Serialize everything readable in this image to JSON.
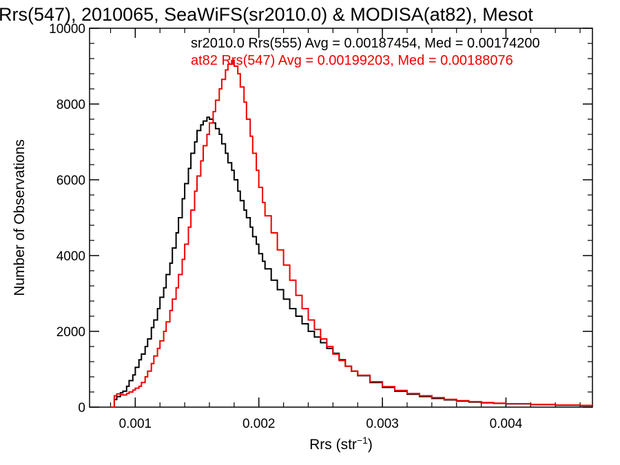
{
  "chart_data": {
    "type": "line",
    "style": "histogram-step",
    "title": "Rrs(547), 2010065, SeaWiFS(sr2010.0) & MODISA(at82), Mesot",
    "xlabel": "Rrs (str",
    "xlabel_superscript": "−1",
    "xlabel_suffix": ")",
    "ylabel": "Number of Observations",
    "xlim": [
      0.00063,
      0.0047
    ],
    "ylim": [
      0,
      10000
    ],
    "x_ticks": [
      0.001,
      0.002,
      0.003,
      0.004
    ],
    "x_tick_labels": [
      "0.001",
      "0.002",
      "0.003",
      "0.004"
    ],
    "y_ticks": [
      0,
      2000,
      4000,
      6000,
      8000,
      10000
    ],
    "y_tick_labels": [
      "0",
      "2000",
      "4000",
      "6000",
      "8000",
      "10000"
    ],
    "grid": false,
    "legend_position": "top",
    "series": [
      {
        "name": "sr2010.0 Rrs(555) Avg = 0.00187454, Med = 0.00174200",
        "color": "#000000",
        "points": [
          [
            0.0008,
            0
          ],
          [
            0.00083,
            200
          ],
          [
            0.00085,
            280
          ],
          [
            0.00088,
            380
          ],
          [
            0.0009,
            420
          ],
          [
            0.00093,
            550
          ],
          [
            0.00095,
            700
          ],
          [
            0.00098,
            850
          ],
          [
            0.001,
            1050
          ],
          [
            0.00103,
            1250
          ],
          [
            0.00105,
            1400
          ],
          [
            0.00108,
            1600
          ],
          [
            0.0011,
            1800
          ],
          [
            0.00113,
            2100
          ],
          [
            0.00115,
            2300
          ],
          [
            0.00118,
            2600
          ],
          [
            0.0012,
            2900
          ],
          [
            0.00123,
            3150
          ],
          [
            0.00125,
            3500
          ],
          [
            0.00128,
            3800
          ],
          [
            0.0013,
            4200
          ],
          [
            0.00133,
            4600
          ],
          [
            0.00135,
            5000
          ],
          [
            0.00138,
            5500
          ],
          [
            0.0014,
            5900
          ],
          [
            0.00143,
            6300
          ],
          [
            0.00145,
            6700
          ],
          [
            0.00148,
            7000
          ],
          [
            0.0015,
            7300
          ],
          [
            0.00153,
            7450
          ],
          [
            0.00155,
            7550
          ],
          [
            0.00158,
            7650
          ],
          [
            0.0016,
            7600
          ],
          [
            0.00163,
            7500
          ],
          [
            0.00165,
            7350
          ],
          [
            0.00168,
            7200
          ],
          [
            0.0017,
            6950
          ],
          [
            0.00173,
            6700
          ],
          [
            0.00175,
            6450
          ],
          [
            0.00178,
            6250
          ],
          [
            0.0018,
            6000
          ],
          [
            0.00183,
            5700
          ],
          [
            0.00185,
            5450
          ],
          [
            0.00188,
            5200
          ],
          [
            0.0019,
            5000
          ],
          [
            0.00193,
            4750
          ],
          [
            0.00195,
            4500
          ],
          [
            0.00198,
            4300
          ],
          [
            0.002,
            4050
          ],
          [
            0.00203,
            3850
          ],
          [
            0.00205,
            3650
          ],
          [
            0.0021,
            3350
          ],
          [
            0.00215,
            3100
          ],
          [
            0.0022,
            2850
          ],
          [
            0.00225,
            2600
          ],
          [
            0.0023,
            2400
          ],
          [
            0.00235,
            2200
          ],
          [
            0.0024,
            2000
          ],
          [
            0.00245,
            1850
          ],
          [
            0.0025,
            1700
          ],
          [
            0.00255,
            1550
          ],
          [
            0.0026,
            1420
          ],
          [
            0.00265,
            1250
          ],
          [
            0.0027,
            1080
          ],
          [
            0.00275,
            950
          ],
          [
            0.0028,
            830
          ],
          [
            0.0029,
            650
          ],
          [
            0.003,
            520
          ],
          [
            0.0031,
            420
          ],
          [
            0.0032,
            340
          ],
          [
            0.0033,
            280
          ],
          [
            0.0034,
            230
          ],
          [
            0.0035,
            190
          ],
          [
            0.0036,
            160
          ],
          [
            0.0037,
            135
          ],
          [
            0.0038,
            115
          ],
          [
            0.0039,
            100
          ],
          [
            0.004,
            85
          ],
          [
            0.0042,
            65
          ],
          [
            0.0044,
            50
          ],
          [
            0.0046,
            40
          ],
          [
            0.0047,
            35
          ]
        ]
      },
      {
        "name": "at82 Rrs(547) Avg = 0.00199203, Med = 0.00188076",
        "color": "#ee0000",
        "points": [
          [
            0.0008,
            0
          ],
          [
            0.00083,
            300
          ],
          [
            0.00085,
            350
          ],
          [
            0.00088,
            330
          ],
          [
            0.0009,
            320
          ],
          [
            0.00093,
            360
          ],
          [
            0.00095,
            400
          ],
          [
            0.00098,
            450
          ],
          [
            0.001,
            500
          ],
          [
            0.00103,
            550
          ],
          [
            0.00105,
            650
          ],
          [
            0.00108,
            800
          ],
          [
            0.0011,
            950
          ],
          [
            0.00113,
            1150
          ],
          [
            0.00115,
            1350
          ],
          [
            0.00118,
            1550
          ],
          [
            0.0012,
            1750
          ],
          [
            0.00123,
            2000
          ],
          [
            0.00125,
            2250
          ],
          [
            0.00128,
            2550
          ],
          [
            0.0013,
            2850
          ],
          [
            0.00133,
            3150
          ],
          [
            0.00135,
            3500
          ],
          [
            0.00138,
            3900
          ],
          [
            0.0014,
            4300
          ],
          [
            0.00143,
            4750
          ],
          [
            0.00145,
            5200
          ],
          [
            0.00148,
            5700
          ],
          [
            0.0015,
            6100
          ],
          [
            0.00153,
            6500
          ],
          [
            0.00155,
            6900
          ],
          [
            0.00158,
            7200
          ],
          [
            0.0016,
            7500
          ],
          [
            0.00163,
            7800
          ],
          [
            0.00165,
            8100
          ],
          [
            0.00168,
            8400
          ],
          [
            0.0017,
            8650
          ],
          [
            0.00173,
            8900
          ],
          [
            0.00175,
            9050
          ],
          [
            0.00178,
            9150
          ],
          [
            0.0018,
            9000
          ],
          [
            0.00183,
            8800
          ],
          [
            0.00185,
            8450
          ],
          [
            0.00188,
            8050
          ],
          [
            0.0019,
            7600
          ],
          [
            0.00193,
            7150
          ],
          [
            0.00195,
            6700
          ],
          [
            0.00198,
            6250
          ],
          [
            0.002,
            5800
          ],
          [
            0.00203,
            5400
          ],
          [
            0.00205,
            5050
          ],
          [
            0.0021,
            4600
          ],
          [
            0.00215,
            4150
          ],
          [
            0.0022,
            3750
          ],
          [
            0.00225,
            3350
          ],
          [
            0.0023,
            2950
          ],
          [
            0.00235,
            2600
          ],
          [
            0.0024,
            2300
          ],
          [
            0.00245,
            2050
          ],
          [
            0.0025,
            1800
          ],
          [
            0.00255,
            1600
          ],
          [
            0.0026,
            1400
          ],
          [
            0.00265,
            1230
          ],
          [
            0.0027,
            1080
          ],
          [
            0.00275,
            950
          ],
          [
            0.0028,
            840
          ],
          [
            0.0029,
            670
          ],
          [
            0.003,
            540
          ],
          [
            0.0031,
            440
          ],
          [
            0.0032,
            360
          ],
          [
            0.0033,
            300
          ],
          [
            0.0034,
            250
          ],
          [
            0.0035,
            205
          ],
          [
            0.0036,
            170
          ],
          [
            0.0037,
            145
          ],
          [
            0.0038,
            120
          ],
          [
            0.0039,
            105
          ],
          [
            0.004,
            90
          ],
          [
            0.0042,
            70
          ],
          [
            0.0044,
            55
          ],
          [
            0.0046,
            45
          ],
          [
            0.0047,
            40
          ]
        ]
      }
    ]
  }
}
